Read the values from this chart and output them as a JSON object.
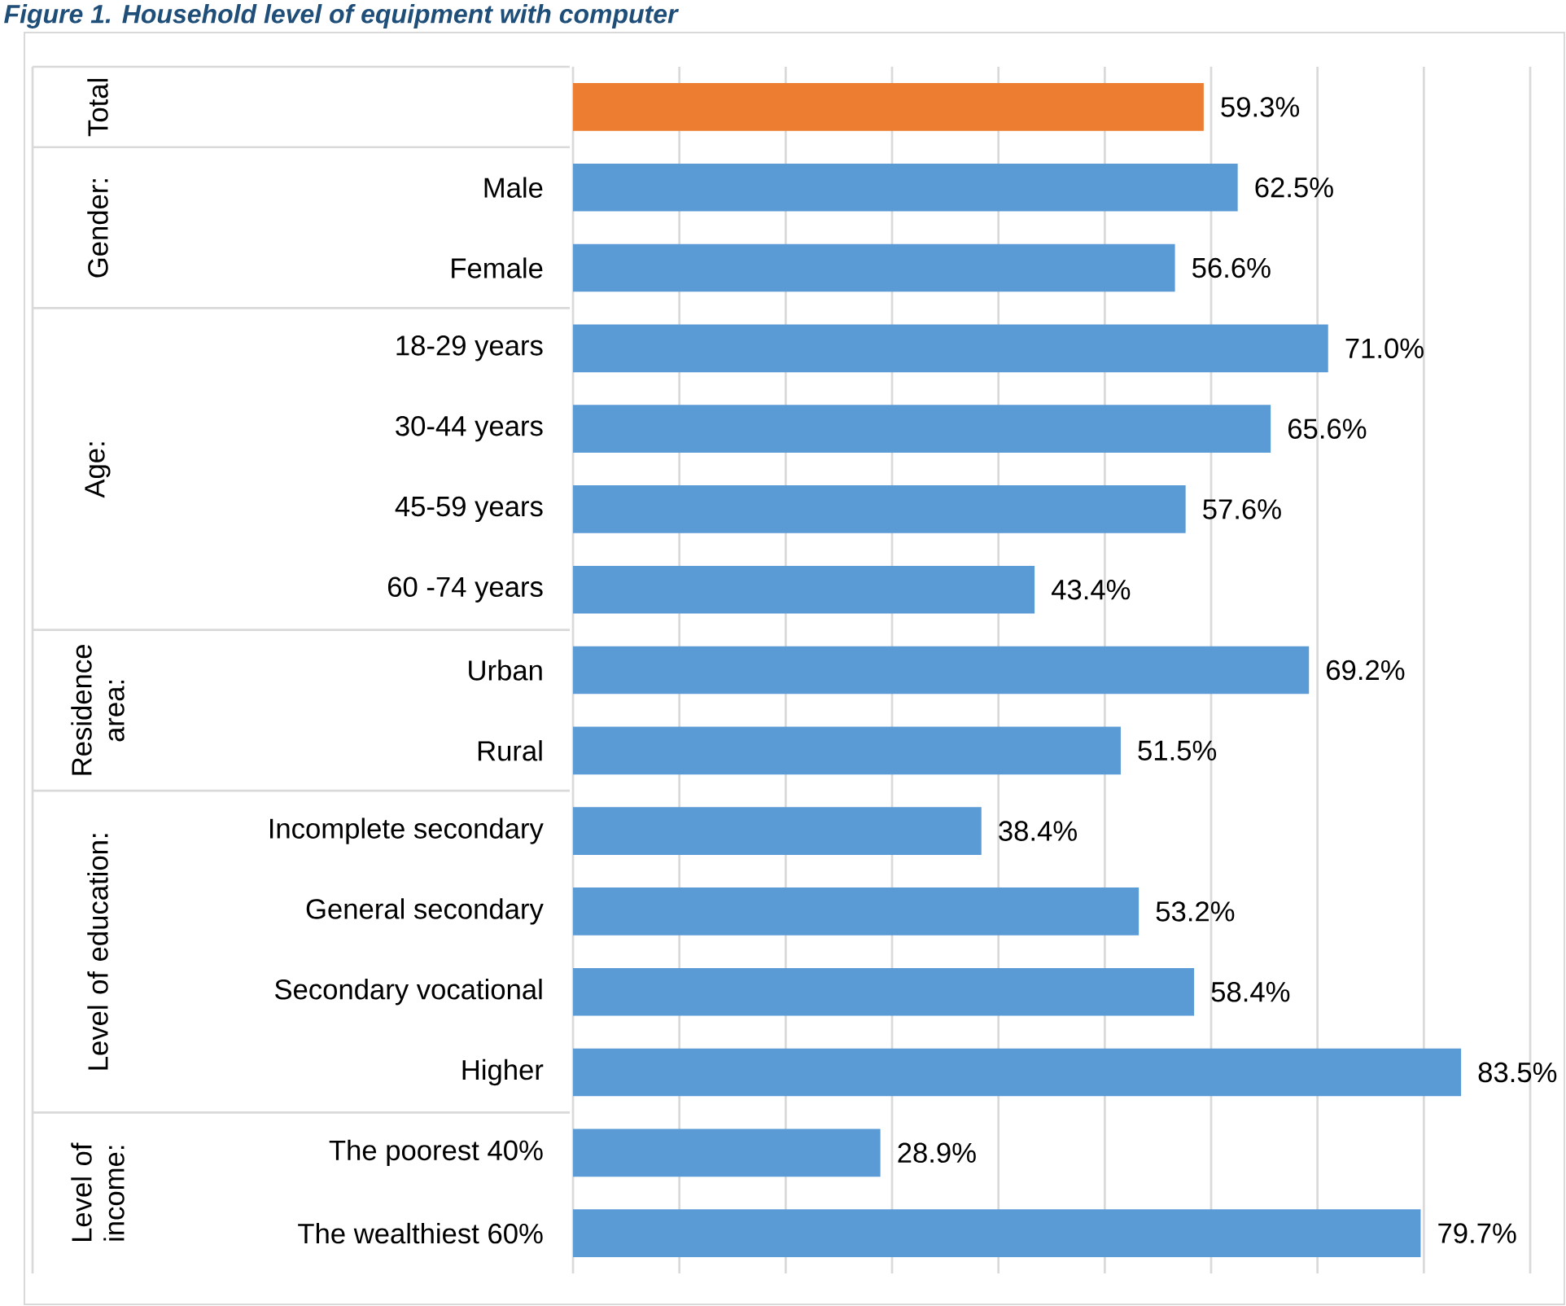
{
  "chart_data": {
    "type": "bar",
    "orientation": "horizontal",
    "title": "Figure 1. Household level of equipment with computer",
    "categories": [
      null,
      "Male",
      "Female",
      "18-29 years",
      "30-44 years",
      "45-59 years",
      "60 -74 years",
      "Urban",
      "Rural",
      "Incomplete secondary",
      "General secondary",
      "Secondary vocational",
      "Higher",
      "The poorest 40%",
      "The wealthiest 60%"
    ],
    "values": [
      59.3,
      62.5,
      56.6,
      71.0,
      65.6,
      57.6,
      43.4,
      69.2,
      51.5,
      38.4,
      53.2,
      58.4,
      83.5,
      28.9,
      79.7
    ],
    "colors": [
      "#ed7d31",
      "#5b9bd5",
      "#5b9bd5",
      "#5b9bd5",
      "#5b9bd5",
      "#5b9bd5",
      "#5b9bd5",
      "#5b9bd5",
      "#5b9bd5",
      "#5b9bd5",
      "#5b9bd5",
      "#5b9bd5",
      "#5b9bd5",
      "#5b9bd5",
      "#5b9bd5"
    ],
    "value_labels": [
      "59.3%",
      "62.5%",
      "56.6%",
      "71.0%",
      "65.6%",
      "57.6%",
      "43.4%",
      "69.2%",
      "51.5%",
      "38.4%",
      "53.2%",
      "58.4%",
      "83.5%",
      "28.9%",
      "79.7%"
    ],
    "xlim": [
      0,
      90
    ],
    "xticks": [
      {
        "value": 0,
        "label": null
      },
      {
        "value": 10,
        "label": null
      },
      {
        "value": 20,
        "label": null
      },
      {
        "value": 30,
        "label": null
      },
      {
        "value": 40,
        "label": null
      },
      {
        "value": 50,
        "label": null
      },
      {
        "value": 60,
        "label": null
      },
      {
        "value": 70,
        "label": null
      },
      {
        "value": 80,
        "label": null
      },
      {
        "value": 90,
        "label": null
      }
    ],
    "grid": "x",
    "tick_labels": "y",
    "annotations": [
      "Total",
      "Gender:",
      "Age:",
      "Residence area:",
      "Level of education:",
      "Level of income:"
    ]
  }
}
